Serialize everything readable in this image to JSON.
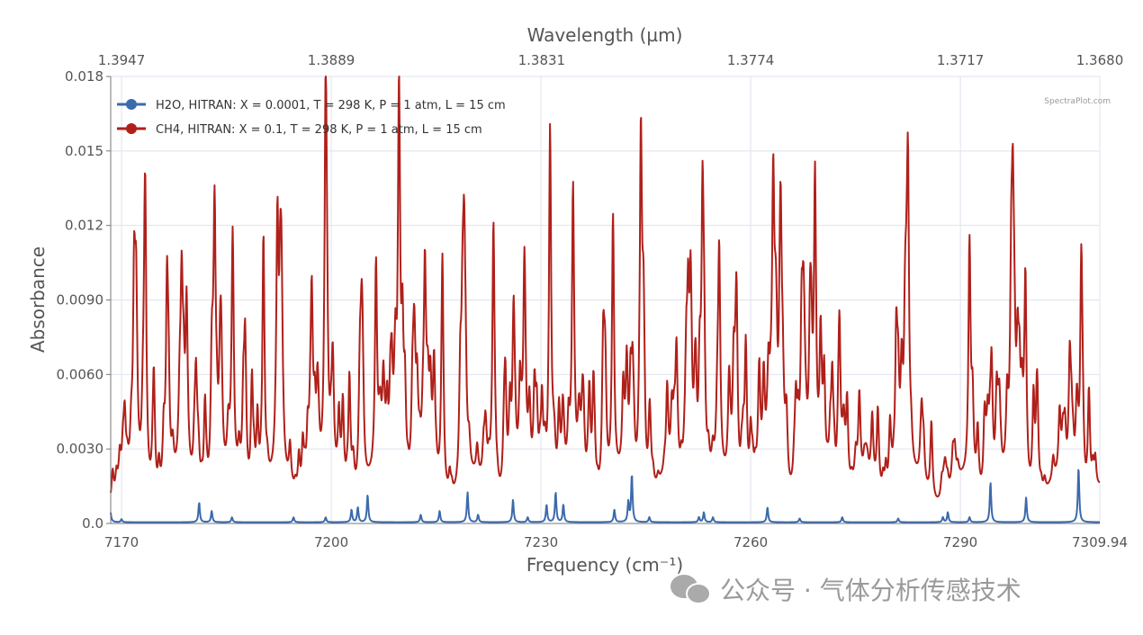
{
  "chart_data": {
    "type": "line",
    "xlabel": "Frequency (cm⁻¹)",
    "x2label": "Wavelength (µm)",
    "ylabel": "Absorbance",
    "xlim": [
      7168.45,
      7309.94
    ],
    "ylim": [
      0,
      0.018
    ],
    "grid": true,
    "legend_position": "top-left",
    "x_ticks": [
      {
        "v": 7170,
        "label": "7170"
      },
      {
        "v": 7200,
        "label": "7200"
      },
      {
        "v": 7230,
        "label": "7230"
      },
      {
        "v": 7260,
        "label": "7260"
      },
      {
        "v": 7290,
        "label": "7290"
      },
      {
        "v": 7309.94,
        "label": "7309.94"
      }
    ],
    "x2_ticks": [
      {
        "v": 7170,
        "label": "1.3947"
      },
      {
        "v": 7200,
        "label": "1.3889"
      },
      {
        "v": 7230.1,
        "label": "1.3831"
      },
      {
        "v": 7260,
        "label": "1.3774"
      },
      {
        "v": 7290,
        "label": "1.3717"
      },
      {
        "v": 7309.94,
        "label": "1.3680"
      }
    ],
    "y_ticks": [
      {
        "v": 0,
        "label": "0.0"
      },
      {
        "v": 0.003,
        "label": "0.0030"
      },
      {
        "v": 0.006,
        "label": "0.0060"
      },
      {
        "v": 0.009,
        "label": "0.0090"
      },
      {
        "v": 0.012,
        "label": "0.012"
      },
      {
        "v": 0.015,
        "label": "0.015"
      },
      {
        "v": 0.018,
        "label": "0.018"
      }
    ],
    "series": [
      {
        "name": "H2O, HITRAN: X = 0.0001, T = 298 K, P = 1 atm, L = 15 cm",
        "color": "#3b6aad",
        "baseline": 5e-05,
        "peaks": [
          [
            7168.3,
            0.001
          ],
          [
            7170,
            0.00012
          ],
          [
            7181.1,
            0.0008
          ],
          [
            7182.9,
            0.00045
          ],
          [
            7185.8,
            0.0002
          ],
          [
            7194.6,
            0.0002
          ],
          [
            7199.2,
            0.0002
          ],
          [
            7202.9,
            0.0005
          ],
          [
            7203.8,
            0.0006
          ],
          [
            7205.2,
            0.0011
          ],
          [
            7212.8,
            0.0003
          ],
          [
            7215.5,
            0.00045
          ],
          [
            7219.5,
            0.0012
          ],
          [
            7221.0,
            0.0003
          ],
          [
            7226.0,
            0.0009
          ],
          [
            7228.1,
            0.0002
          ],
          [
            7230.8,
            0.0007
          ],
          [
            7232.1,
            0.0012
          ],
          [
            7233.2,
            0.0007
          ],
          [
            7240.5,
            0.0005
          ],
          [
            7242.5,
            0.0008
          ],
          [
            7243.0,
            0.0019
          ],
          [
            7245.5,
            0.0002
          ],
          [
            7252.6,
            0.0002
          ],
          [
            7253.3,
            0.0004
          ],
          [
            7254.6,
            0.0002
          ],
          [
            7262.4,
            0.0006
          ],
          [
            7267.0,
            0.00015
          ],
          [
            7273.1,
            0.0002
          ],
          [
            7281.1,
            0.00015
          ],
          [
            7287.5,
            0.0002
          ],
          [
            7288.2,
            0.0004
          ],
          [
            7291.3,
            0.0002
          ],
          [
            7294.3,
            0.0016
          ],
          [
            7299.4,
            0.001
          ],
          [
            7306.9,
            0.0022
          ]
        ]
      },
      {
        "name": "CH4, HITRAN: X = 0.1, T = 298 K, P = 1 atm, L = 15 cm",
        "color": "#b0201a",
        "baseline": 0.0018,
        "peaks": [
          [
            7171.8,
            0.0078
          ],
          [
            7173.4,
            0.01
          ],
          [
            7176.5,
            0.0083
          ],
          [
            7178.6,
            0.0074
          ],
          [
            7179.3,
            0.006
          ],
          [
            7183.3,
            0.0085
          ],
          [
            7185.9,
            0.0104
          ],
          [
            7190.3,
            0.0106
          ],
          [
            7192.3,
            0.0102
          ],
          [
            7197.2,
            0.0073
          ],
          [
            7199.2,
            0.0142
          ],
          [
            7202.6,
            0.0051
          ],
          [
            7206.4,
            0.0091
          ],
          [
            7209.7,
            0.0138
          ],
          [
            7213.4,
            0.0083
          ],
          [
            7215.9,
            0.0104
          ],
          [
            7219.0,
            0.0077
          ],
          [
            7223.2,
            0.0114
          ],
          [
            7226.1,
            0.0062
          ],
          [
            7231.3,
            0.0153
          ],
          [
            7234.6,
            0.0095
          ],
          [
            7240.3,
            0.008
          ],
          [
            7244.3,
            0.0095
          ],
          [
            7251.4,
            0.0073
          ],
          [
            7253.1,
            0.0088
          ],
          [
            7255.5,
            0.0085
          ],
          [
            7259.3,
            0.0063
          ],
          [
            7264.3,
            0.0082
          ],
          [
            7269.2,
            0.0125
          ],
          [
            7272.7,
            0.0067
          ],
          [
            7282.5,
            0.011
          ],
          [
            7291.3,
            0.0103
          ],
          [
            7297.5,
            0.0092
          ],
          [
            7299.3,
            0.0062
          ],
          [
            7307.3,
            0.0079
          ]
        ]
      }
    ]
  },
  "watermark_small": "SpectraPlot.com",
  "watermark_wechat": "公众号 · 气体分析传感技术"
}
